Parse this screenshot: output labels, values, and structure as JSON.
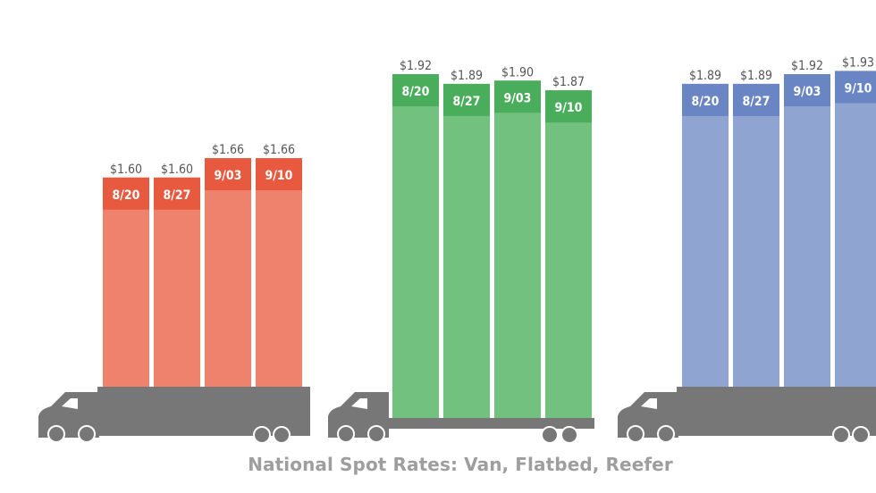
{
  "chart_data": {
    "type": "bar",
    "title": "National Spot Rates: Van, Flatbed, Reefer",
    "ylim": [
      0,
      2.3
    ],
    "groups": [
      {
        "categories": [
          "8/20",
          "8/27",
          "9/03",
          "9/10"
        ],
        "values": [
          1.6,
          1.6,
          1.66,
          1.66
        ],
        "labels": [
          "$1.60",
          "$1.60",
          "$1.66",
          "$1.66"
        ],
        "color": "#ee826c",
        "cap_color": "#e85a3f"
      },
      {
        "categories": [
          "8/20",
          "8/27",
          "9/03",
          "9/10"
        ],
        "values": [
          1.92,
          1.89,
          1.9,
          1.87
        ],
        "labels": [
          "$1.92",
          "$1.89",
          "$1.90",
          "$1.87"
        ],
        "color": "#72c17f",
        "cap_color": "#4aad5b"
      },
      {
        "categories": [
          "8/20",
          "8/27",
          "9/03",
          "9/10"
        ],
        "values": [
          1.89,
          1.89,
          1.92,
          1.93
        ],
        "labels": [
          "$1.89",
          "$1.89",
          "$1.92",
          "$1.93"
        ],
        "color": "#8fa4d0",
        "cap_color": "#6985c3"
      }
    ]
  }
}
